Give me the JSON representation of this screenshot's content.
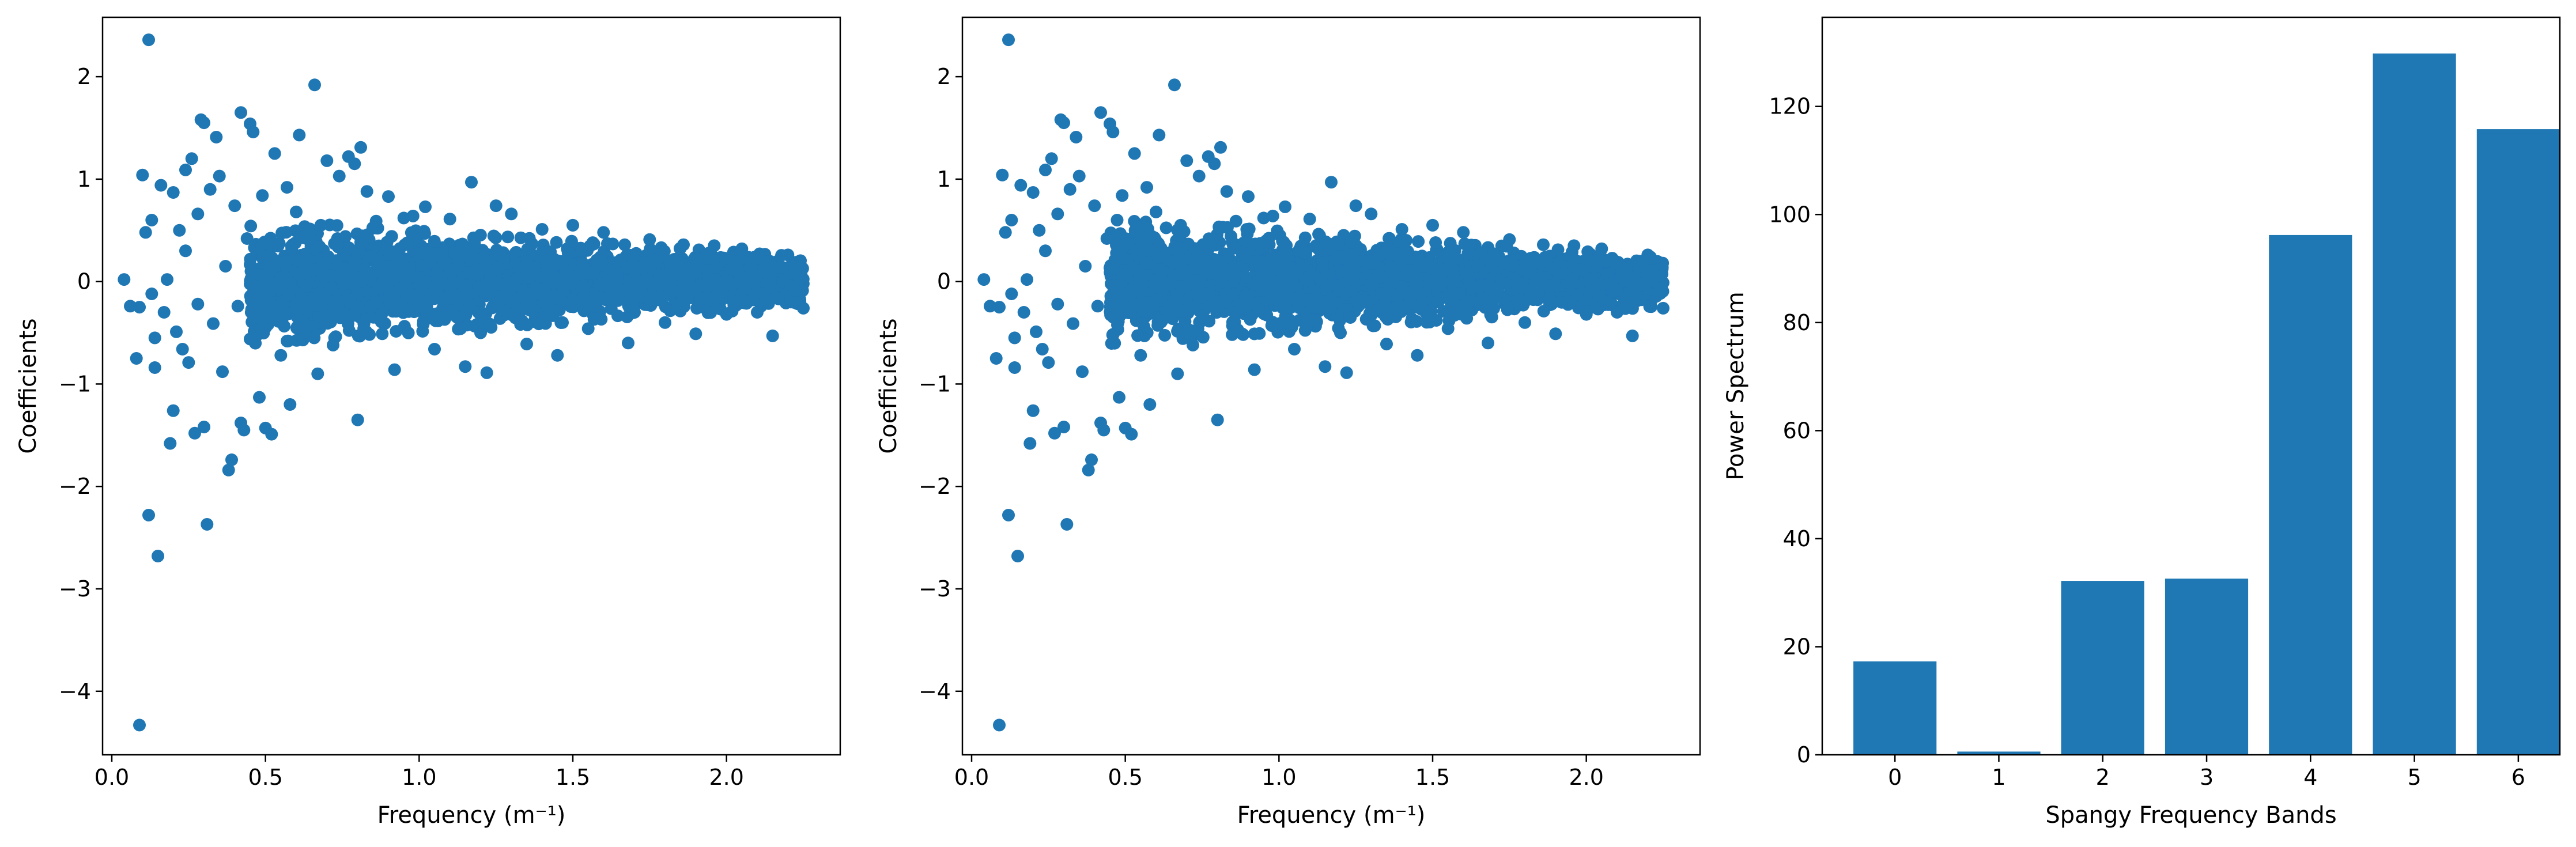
{
  "colors": {
    "mark": "#1f77b4",
    "axis": "#000000",
    "background": "#ffffff"
  },
  "chart_data": [
    {
      "type": "scatter",
      "title": "",
      "xlabel": "Frequency (m⁻¹)",
      "ylabel": "Coefficients",
      "xlim": [
        -0.03,
        2.37
      ],
      "ylim": [
        -4.62,
        2.58
      ],
      "xticks": [
        0.0,
        0.5,
        1.0,
        1.5,
        2.0
      ],
      "xtick_labels": [
        "0.0",
        "0.5",
        "1.0",
        "1.5",
        "2.0"
      ],
      "yticks": [
        -4,
        -3,
        -2,
        -1,
        0,
        1,
        2
      ],
      "ytick_labels": [
        "−4",
        "−3",
        "−2",
        "−1",
        "0",
        "1",
        "2"
      ],
      "grid": false,
      "points": [
        [
          0.04,
          0.02
        ],
        [
          0.06,
          -0.24
        ],
        [
          0.09,
          -0.25
        ],
        [
          0.08,
          -0.75
        ],
        [
          0.1,
          1.04
        ],
        [
          0.12,
          2.36
        ],
        [
          0.09,
          -4.33
        ],
        [
          0.12,
          -2.28
        ],
        [
          0.15,
          -2.68
        ],
        [
          0.11,
          0.48
        ],
        [
          0.13,
          -0.12
        ],
        [
          0.13,
          0.6
        ],
        [
          0.14,
          -0.55
        ],
        [
          0.14,
          -0.84
        ],
        [
          0.16,
          0.94
        ],
        [
          0.17,
          -0.3
        ],
        [
          0.18,
          0.02
        ],
        [
          0.19,
          -1.58
        ],
        [
          0.2,
          0.87
        ],
        [
          0.2,
          -1.26
        ],
        [
          0.21,
          -0.49
        ],
        [
          0.22,
          0.5
        ],
        [
          0.23,
          -0.66
        ],
        [
          0.24,
          1.09
        ],
        [
          0.24,
          0.3
        ],
        [
          0.25,
          -0.79
        ],
        [
          0.26,
          1.2
        ],
        [
          0.27,
          -1.48
        ],
        [
          0.28,
          0.66
        ],
        [
          0.28,
          -0.22
        ],
        [
          0.29,
          1.58
        ],
        [
          0.3,
          1.55
        ],
        [
          0.31,
          -2.37
        ],
        [
          0.3,
          -1.42
        ],
        [
          0.32,
          0.9
        ],
        [
          0.33,
          -0.41
        ],
        [
          0.34,
          1.41
        ],
        [
          0.35,
          1.03
        ],
        [
          0.36,
          -0.88
        ],
        [
          0.37,
          0.15
        ],
        [
          0.38,
          -1.84
        ],
        [
          0.39,
          -1.74
        ],
        [
          0.4,
          0.74
        ],
        [
          0.41,
          -0.24
        ],
        [
          0.42,
          1.65
        ],
        [
          0.42,
          -1.38
        ],
        [
          0.43,
          -1.45
        ],
        [
          0.44,
          0.42
        ],
        [
          0.45,
          1.54
        ],
        [
          0.46,
          1.46
        ],
        [
          0.47,
          -0.33
        ],
        [
          0.48,
          -1.13
        ],
        [
          0.49,
          0.84
        ],
        [
          0.5,
          -1.43
        ],
        [
          0.51,
          0.37
        ],
        [
          0.52,
          -1.49
        ],
        [
          0.52,
          -0.08
        ],
        [
          0.53,
          1.25
        ],
        [
          0.55,
          -0.72
        ],
        [
          0.57,
          0.92
        ],
        [
          0.58,
          -1.2
        ],
        [
          0.6,
          0.68
        ],
        [
          0.61,
          1.43
        ],
        [
          0.62,
          -0.38
        ],
        [
          0.64,
          0.21
        ],
        [
          0.66,
          1.92
        ],
        [
          0.67,
          -0.9
        ],
        [
          0.68,
          0.55
        ],
        [
          0.7,
          1.18
        ],
        [
          0.72,
          -0.62
        ],
        [
          0.74,
          1.03
        ],
        [
          0.77,
          1.22
        ],
        [
          0.79,
          1.15
        ],
        [
          0.8,
          -1.35
        ],
        [
          0.81,
          1.31
        ],
        [
          0.83,
          0.88
        ],
        [
          0.86,
          0.59
        ],
        [
          0.88,
          -0.51
        ],
        [
          0.9,
          0.83
        ],
        [
          0.92,
          -0.86
        ],
        [
          0.95,
          0.62
        ],
        [
          0.98,
          0.64
        ],
        [
          1.02,
          0.73
        ],
        [
          1.05,
          -0.66
        ],
        [
          1.1,
          0.61
        ],
        [
          1.15,
          -0.83
        ],
        [
          1.17,
          0.97
        ],
        [
          1.2,
          -0.5
        ],
        [
          1.22,
          -0.89
        ],
        [
          1.25,
          0.74
        ],
        [
          1.3,
          0.66
        ],
        [
          1.35,
          -0.61
        ],
        [
          1.4,
          0.51
        ],
        [
          1.45,
          -0.72
        ],
        [
          1.5,
          0.55
        ],
        [
          1.55,
          -0.46
        ],
        [
          1.6,
          0.48
        ],
        [
          1.68,
          -0.6
        ],
        [
          1.75,
          0.41
        ],
        [
          1.8,
          -0.4
        ],
        [
          1.86,
          0.36
        ],
        [
          1.9,
          -0.51
        ],
        [
          1.96,
          0.35
        ],
        [
          2.0,
          -0.32
        ],
        [
          2.05,
          0.32
        ],
        [
          2.1,
          -0.3
        ],
        [
          2.15,
          -0.53
        ],
        [
          2.2,
          0.26
        ],
        [
          2.25,
          -0.26
        ]
      ],
      "dense_band": {
        "x_start": 0.45,
        "x_end": 2.25,
        "center": 0.0,
        "halfwidth_start": 0.55,
        "halfwidth_end": 0.22
      }
    },
    {
      "type": "scatter",
      "title": "",
      "xlabel": "Frequency (m⁻¹)",
      "ylabel": "Coefficients",
      "xlim": [
        -0.03,
        2.37
      ],
      "ylim": [
        -4.62,
        2.58
      ],
      "xticks": [
        0.0,
        0.5,
        1.0,
        1.5,
        2.0
      ],
      "xtick_labels": [
        "0.0",
        "0.5",
        "1.0",
        "1.5",
        "2.0"
      ],
      "yticks": [
        -4,
        -3,
        -2,
        -1,
        0,
        1,
        2
      ],
      "ytick_labels": [
        "−4",
        "−3",
        "−2",
        "−1",
        "0",
        "1",
        "2"
      ],
      "grid": false,
      "points": [
        [
          0.04,
          0.02
        ],
        [
          0.06,
          -0.24
        ],
        [
          0.09,
          -0.25
        ],
        [
          0.08,
          -0.75
        ],
        [
          0.1,
          1.04
        ],
        [
          0.12,
          2.36
        ],
        [
          0.09,
          -4.33
        ],
        [
          0.12,
          -2.28
        ],
        [
          0.15,
          -2.68
        ],
        [
          0.11,
          0.48
        ],
        [
          0.13,
          -0.12
        ],
        [
          0.13,
          0.6
        ],
        [
          0.14,
          -0.55
        ],
        [
          0.14,
          -0.84
        ],
        [
          0.16,
          0.94
        ],
        [
          0.17,
          -0.3
        ],
        [
          0.18,
          0.02
        ],
        [
          0.19,
          -1.58
        ],
        [
          0.2,
          0.87
        ],
        [
          0.2,
          -1.26
        ],
        [
          0.21,
          -0.49
        ],
        [
          0.22,
          0.5
        ],
        [
          0.23,
          -0.66
        ],
        [
          0.24,
          1.09
        ],
        [
          0.24,
          0.3
        ],
        [
          0.25,
          -0.79
        ],
        [
          0.26,
          1.2
        ],
        [
          0.27,
          -1.48
        ],
        [
          0.28,
          0.66
        ],
        [
          0.28,
          -0.22
        ],
        [
          0.29,
          1.58
        ],
        [
          0.3,
          1.55
        ],
        [
          0.31,
          -2.37
        ],
        [
          0.3,
          -1.42
        ],
        [
          0.32,
          0.9
        ],
        [
          0.33,
          -0.41
        ],
        [
          0.34,
          1.41
        ],
        [
          0.35,
          1.03
        ],
        [
          0.36,
          -0.88
        ],
        [
          0.37,
          0.15
        ],
        [
          0.38,
          -1.84
        ],
        [
          0.39,
          -1.74
        ],
        [
          0.4,
          0.74
        ],
        [
          0.41,
          -0.24
        ],
        [
          0.42,
          1.65
        ],
        [
          0.42,
          -1.38
        ],
        [
          0.43,
          -1.45
        ],
        [
          0.44,
          0.42
        ],
        [
          0.45,
          1.54
        ],
        [
          0.46,
          1.46
        ],
        [
          0.47,
          -0.33
        ],
        [
          0.48,
          -1.13
        ],
        [
          0.49,
          0.84
        ],
        [
          0.5,
          -1.43
        ],
        [
          0.51,
          0.37
        ],
        [
          0.52,
          -1.49
        ],
        [
          0.52,
          -0.08
        ],
        [
          0.53,
          1.25
        ],
        [
          0.55,
          -0.72
        ],
        [
          0.57,
          0.92
        ],
        [
          0.58,
          -1.2
        ],
        [
          0.6,
          0.68
        ],
        [
          0.61,
          1.43
        ],
        [
          0.62,
          -0.38
        ],
        [
          0.64,
          0.21
        ],
        [
          0.66,
          1.92
        ],
        [
          0.67,
          -0.9
        ],
        [
          0.68,
          0.55
        ],
        [
          0.7,
          1.18
        ],
        [
          0.72,
          -0.62
        ],
        [
          0.74,
          1.03
        ],
        [
          0.77,
          1.22
        ],
        [
          0.79,
          1.15
        ],
        [
          0.8,
          -1.35
        ],
        [
          0.81,
          1.31
        ],
        [
          0.83,
          0.88
        ],
        [
          0.86,
          0.59
        ],
        [
          0.88,
          -0.51
        ],
        [
          0.9,
          0.83
        ],
        [
          0.92,
          -0.86
        ],
        [
          0.95,
          0.62
        ],
        [
          0.98,
          0.64
        ],
        [
          1.02,
          0.73
        ],
        [
          1.05,
          -0.66
        ],
        [
          1.1,
          0.61
        ],
        [
          1.15,
          -0.83
        ],
        [
          1.17,
          0.97
        ],
        [
          1.2,
          -0.5
        ],
        [
          1.22,
          -0.89
        ],
        [
          1.25,
          0.74
        ],
        [
          1.3,
          0.66
        ],
        [
          1.35,
          -0.61
        ],
        [
          1.4,
          0.51
        ],
        [
          1.45,
          -0.72
        ],
        [
          1.5,
          0.55
        ],
        [
          1.55,
          -0.46
        ],
        [
          1.6,
          0.48
        ],
        [
          1.68,
          -0.6
        ],
        [
          1.75,
          0.41
        ],
        [
          1.8,
          -0.4
        ],
        [
          1.86,
          0.36
        ],
        [
          1.9,
          -0.51
        ],
        [
          1.96,
          0.35
        ],
        [
          2.0,
          -0.32
        ],
        [
          2.05,
          0.32
        ],
        [
          2.1,
          -0.3
        ],
        [
          2.15,
          -0.53
        ],
        [
          2.2,
          0.26
        ],
        [
          2.25,
          -0.26
        ]
      ],
      "dense_band": {
        "x_start": 0.45,
        "x_end": 2.25,
        "center": 0.0,
        "halfwidth_start": 0.55,
        "halfwidth_end": 0.22
      }
    },
    {
      "type": "bar",
      "title": "",
      "xlabel": "Spangy Frequency Bands",
      "ylabel": "Power Spectrum",
      "categories": [
        "0",
        "1",
        "2",
        "3",
        "4",
        "5",
        "6"
      ],
      "values": [
        17.3,
        0.6,
        32.2,
        32.6,
        96.2,
        129.8,
        115.8
      ],
      "xlim": [
        -0.7,
        6.4
      ],
      "ylim": [
        0,
        136.5
      ],
      "yticks": [
        0,
        20,
        40,
        60,
        80,
        100,
        120
      ],
      "ytick_labels": [
        "0",
        "20",
        "40",
        "60",
        "80",
        "100",
        "120"
      ],
      "grid": false
    }
  ]
}
